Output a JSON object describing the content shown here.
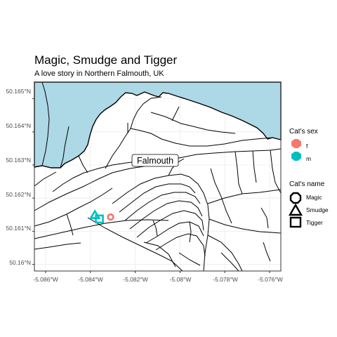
{
  "title": "Magic, Smudge and Tigger",
  "subtitle": "A love story in Northern Falmouth, UK",
  "map_label": "Falmouth",
  "y_ticks": [
    "50.165°N",
    "50.164°N",
    "50.163°N",
    "50.162°N",
    "50.161°N",
    "50.16°N"
  ],
  "x_ticks": [
    "-5.086°W",
    "-5.084°W",
    "-5.082°W",
    "-5.08°W",
    "-5.078°W",
    "-5.076°W"
  ],
  "legend_sex": {
    "title": "Cat's sex",
    "items": [
      {
        "label": "f",
        "color": "#F8766D"
      },
      {
        "label": "m",
        "color": "#00BFC4"
      }
    ]
  },
  "legend_name": {
    "title": "Cat's name",
    "items": [
      {
        "label": "Magic",
        "shape": "octagon-icon"
      },
      {
        "label": "Smudge",
        "shape": "triangle-icon"
      },
      {
        "label": "Tigger",
        "shape": "square-icon"
      }
    ]
  },
  "colors": {
    "sea": "#ADD8E6",
    "grid": "#EBEBEB",
    "roads": "#000000",
    "female": "#F8766D",
    "male": "#00BFC4"
  },
  "chart_data": {
    "type": "scatter",
    "xlim": [
      -5.0865,
      -5.0755
    ],
    "ylim": [
      50.1598,
      50.1655
    ],
    "points": [
      {
        "x": -5.0831,
        "y": 50.16143,
        "sex": "f",
        "name": "Magic"
      },
      {
        "x": -5.0838,
        "y": 50.16148,
        "sex": "m",
        "name": "Smudge"
      },
      {
        "x": -5.0836,
        "y": 50.16137,
        "sex": "m",
        "name": "Tigger"
      }
    ]
  }
}
